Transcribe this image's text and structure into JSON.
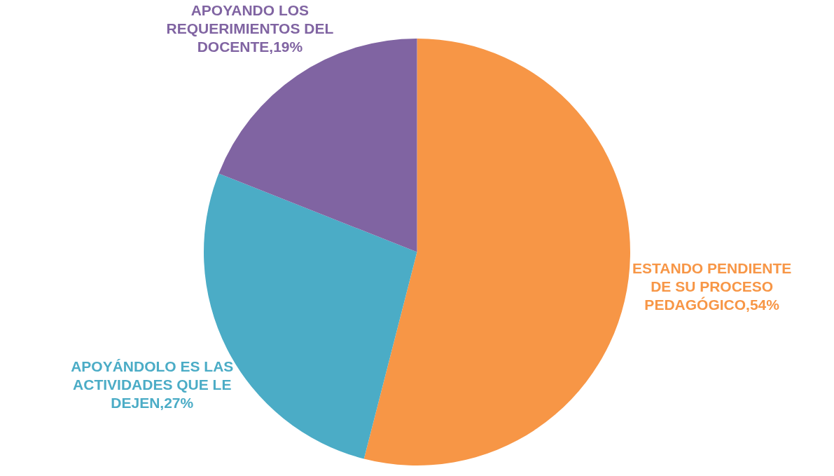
{
  "chart_data": {
    "type": "pie",
    "categories": [
      "ESTANDO PENDIENTE DE SU PROCESO PEDAGÓGICO",
      "APOYÁNDOLO ES LAS ACTIVIDADES QUE LE DEJEN",
      "APOYANDO LOS REQUERIMIENTOS DEL DOCENTE"
    ],
    "values": [
      54,
      27,
      19
    ],
    "value_labels": [
      "54%",
      "27%",
      "19%"
    ],
    "colors": [
      "#f79646",
      "#4bacc6",
      "#8064a2"
    ],
    "legend": false
  }
}
